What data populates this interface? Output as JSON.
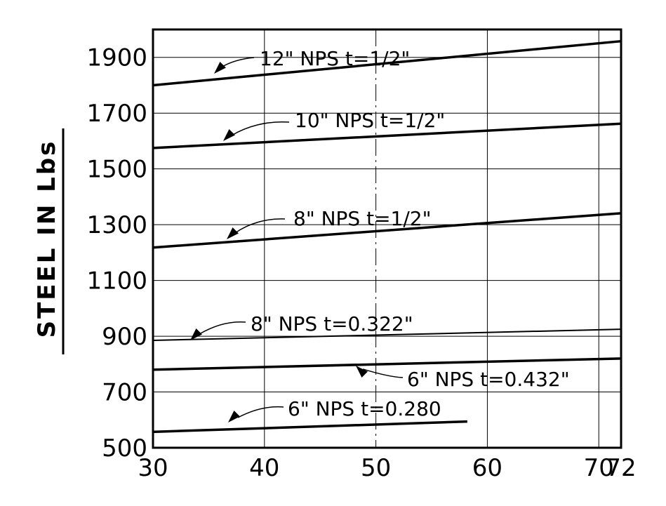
{
  "chart_data": {
    "type": "line",
    "title": "",
    "xlabel": "",
    "ylabel": "STEEL IN Lbs",
    "xlim": [
      30,
      72
    ],
    "ylim": [
      500,
      2000
    ],
    "x_ticks": [
      30,
      40,
      50,
      60,
      70,
      72
    ],
    "y_ticks": [
      500,
      700,
      900,
      1100,
      1300,
      1500,
      1700,
      1900
    ],
    "grid": true,
    "series": [
      {
        "name": "12\" NPS  t=1/2\"",
        "x": [
          30,
          72
        ],
        "y": [
          1800,
          1958
        ],
        "stroke": 3.5
      },
      {
        "name": "10\" NPS  t=1/2\"",
        "x": [
          30,
          72
        ],
        "y": [
          1575,
          1662
        ],
        "stroke": 3.5
      },
      {
        "name": "8\" NPS  t=1/2\"",
        "x": [
          30,
          72
        ],
        "y": [
          1218,
          1341
        ],
        "stroke": 3.5
      },
      {
        "name": "8\" NPS  t=0.322\"",
        "x": [
          30,
          72
        ],
        "y": [
          885,
          925
        ],
        "stroke": 2
      },
      {
        "name": "6\" NPS  t=0.432\"",
        "x": [
          30,
          72
        ],
        "y": [
          780,
          820
        ],
        "stroke": 3.5
      },
      {
        "name": "6\" NPS  t=0.280",
        "x": [
          30,
          58.2
        ],
        "y": [
          557,
          594
        ],
        "stroke": 3.5
      }
    ]
  }
}
